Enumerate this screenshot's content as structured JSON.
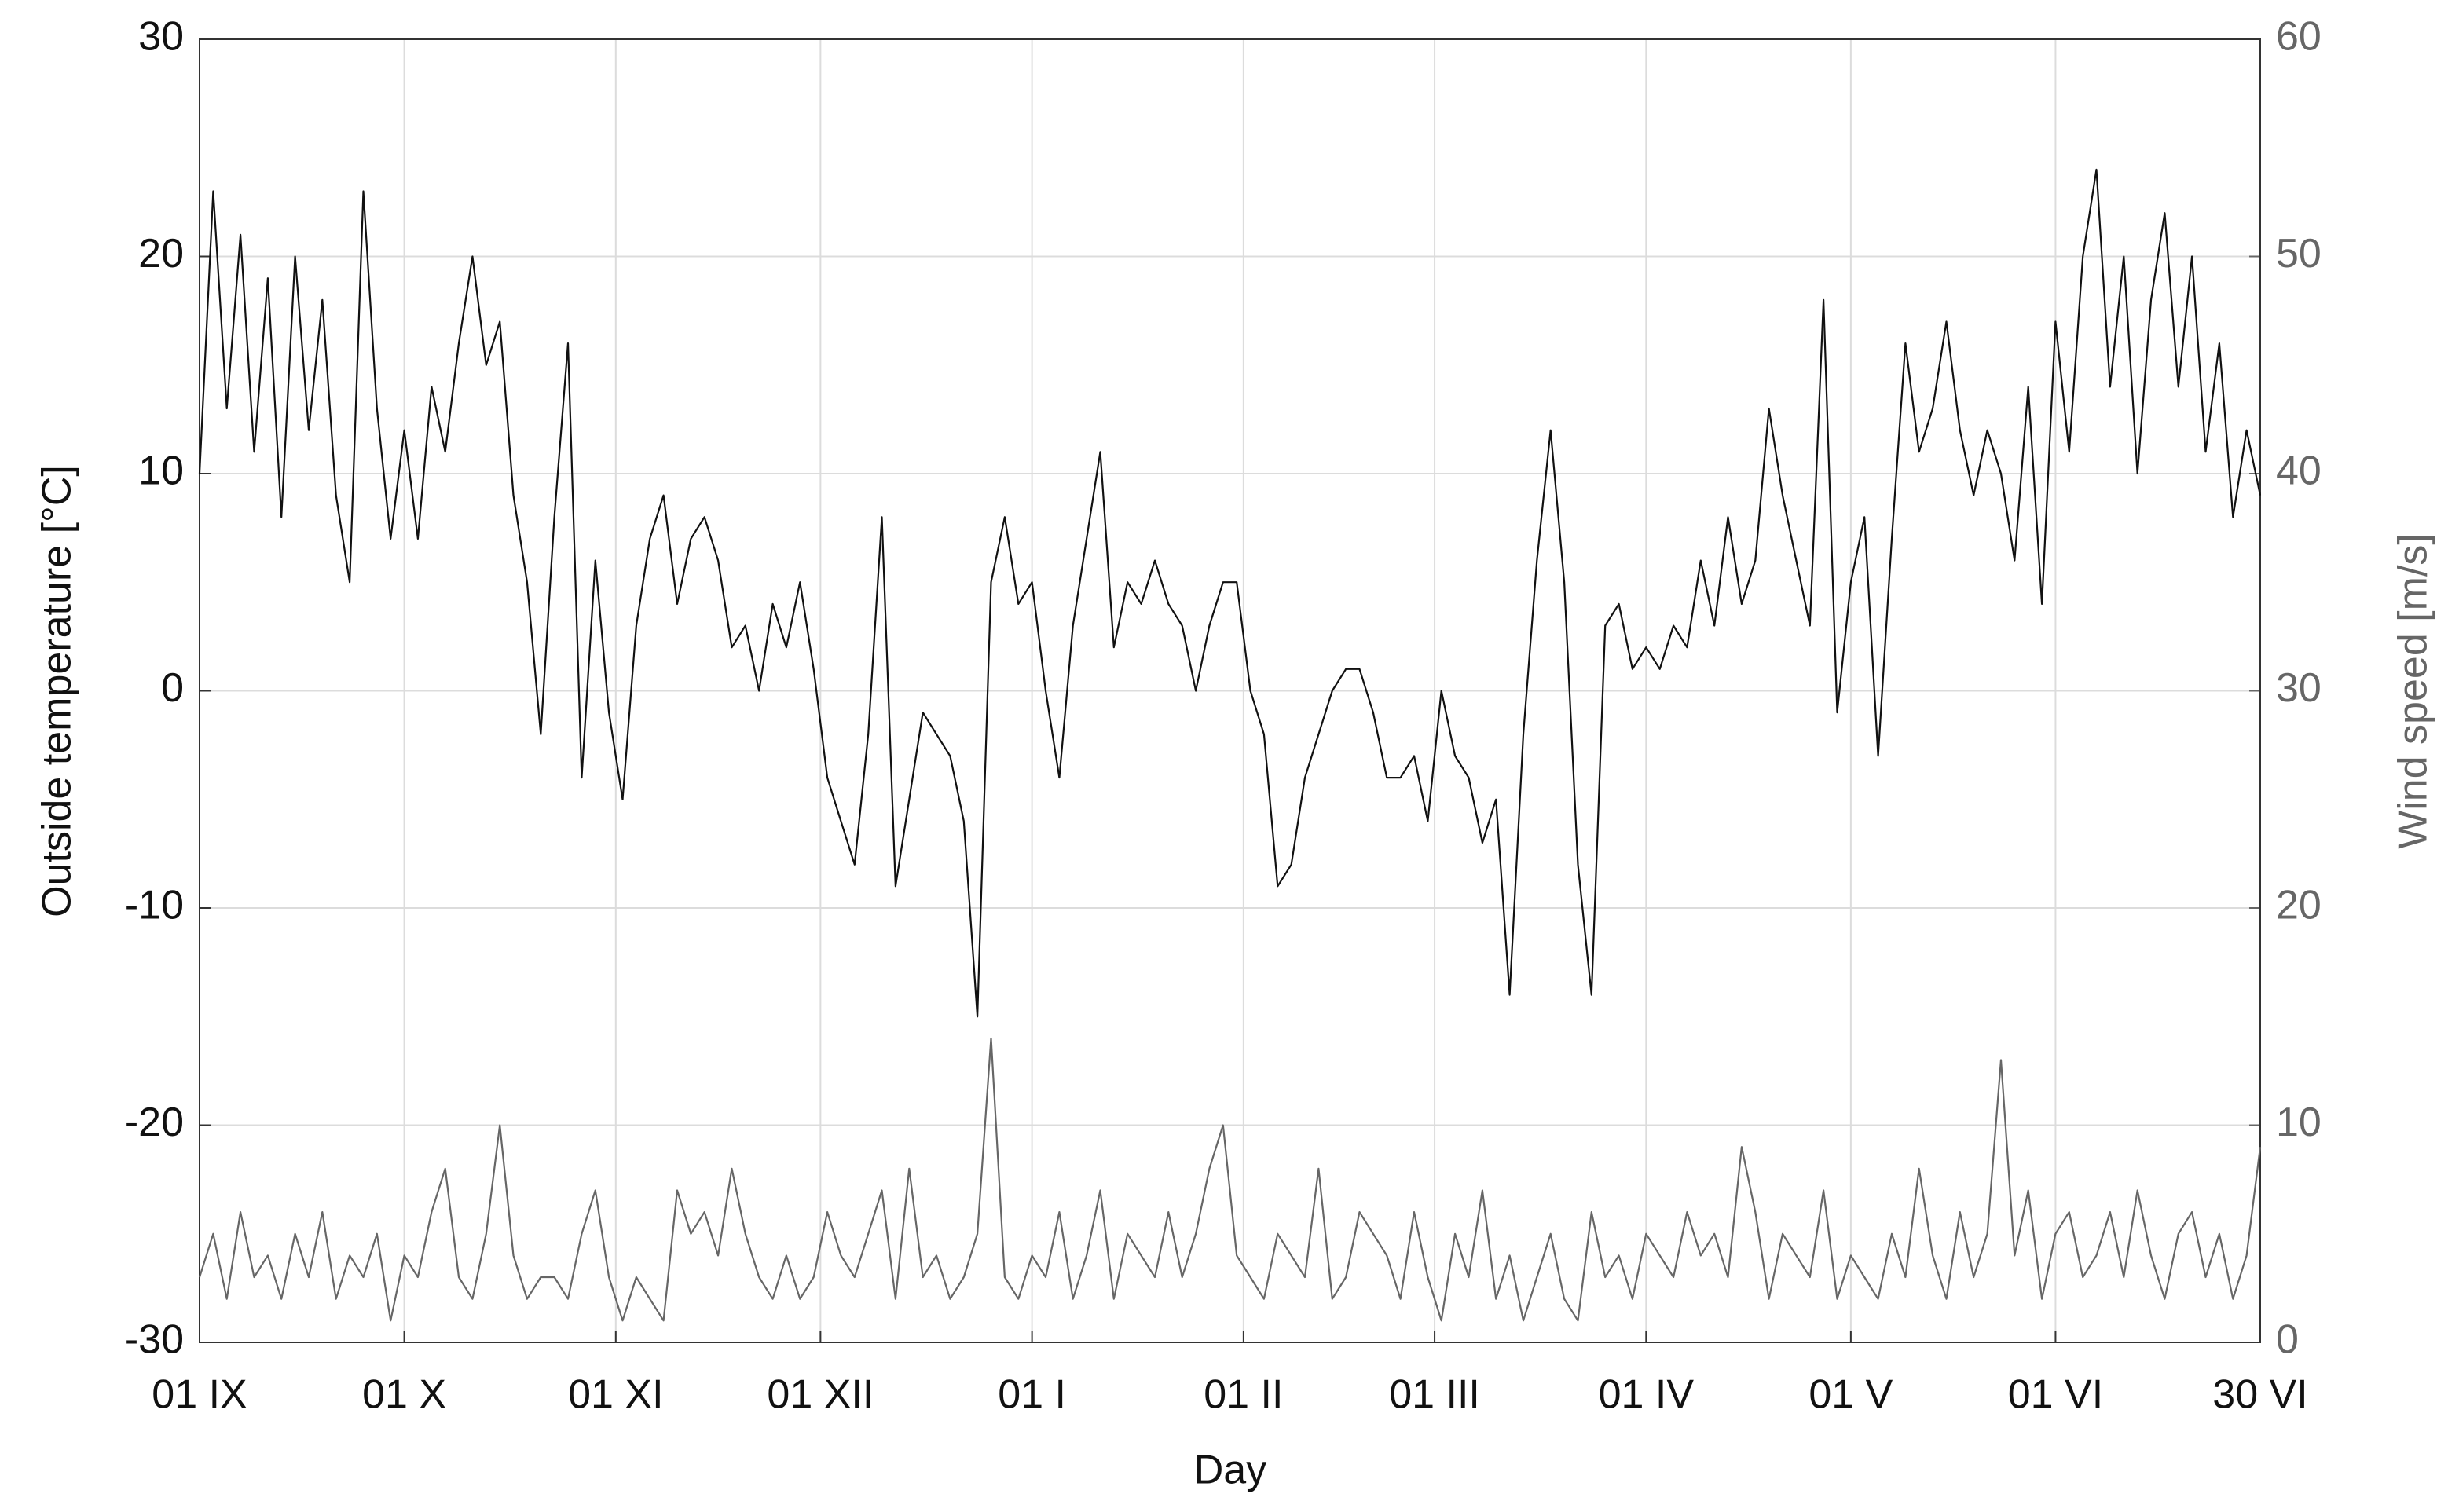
{
  "chart_data": {
    "type": "line",
    "xlabel": "Day",
    "ylabel": "Outside temperature [°C]",
    "y2label": "Wind speed [m/s]",
    "x": [
      0,
      2,
      4,
      6,
      8,
      10,
      12,
      14,
      16,
      18,
      20,
      22,
      24,
      26,
      28,
      30,
      32,
      34,
      36,
      38,
      40,
      42,
      44,
      46,
      48,
      50,
      52,
      54,
      56,
      58,
      60,
      62,
      64,
      66,
      68,
      70,
      72,
      74,
      76,
      78,
      80,
      82,
      84,
      86,
      88,
      90,
      92,
      94,
      96,
      98,
      100,
      102,
      104,
      106,
      108,
      110,
      112,
      114,
      116,
      118,
      120,
      122,
      124,
      126,
      128,
      130,
      132,
      134,
      136,
      138,
      140,
      142,
      144,
      146,
      148,
      150,
      152,
      154,
      156,
      158,
      160,
      162,
      164,
      166,
      168,
      170,
      172,
      174,
      176,
      178,
      180,
      182,
      184,
      186,
      188,
      190,
      192,
      194,
      196,
      198,
      200,
      202,
      204,
      206,
      208,
      210,
      212,
      214,
      216,
      218,
      220,
      222,
      224,
      226,
      228,
      230,
      232,
      234,
      236,
      238,
      240,
      242,
      244,
      246,
      248,
      250,
      252,
      254,
      256,
      258,
      260,
      262,
      264,
      266,
      268,
      270,
      272,
      274,
      276,
      278,
      280,
      282,
      284,
      286,
      288,
      290,
      292,
      294,
      296,
      298,
      300,
      302
    ],
    "series": [
      {
        "color": "#111111",
        "values": [
          10,
          23,
          13,
          21,
          11,
          19,
          8,
          20,
          12,
          18,
          9,
          5,
          23,
          13,
          7,
          12,
          7,
          14,
          11,
          16,
          20,
          15,
          17,
          9,
          5,
          -2,
          8,
          16,
          -4,
          6,
          -1,
          -5,
          3,
          7,
          9,
          4,
          7,
          8,
          6,
          2,
          3,
          0,
          4,
          2,
          5,
          1,
          -4,
          -6,
          -8,
          -2,
          8,
          -9,
          -5,
          -1,
          -2,
          -3,
          -6,
          -15,
          5,
          8,
          4,
          5,
          0,
          -4,
          3,
          7,
          11,
          2,
          5,
          4,
          6,
          4,
          3,
          0,
          3,
          5,
          5,
          0,
          -2,
          -9,
          -8,
          -4,
          -2,
          0,
          1,
          1,
          -1,
          -4,
          -4,
          -3,
          -6,
          0,
          -3,
          -4,
          -7,
          -5,
          -14,
          -2,
          6,
          12,
          5,
          -8,
          -14,
          3,
          4,
          1,
          2,
          1,
          3,
          2,
          6,
          3,
          8,
          4,
          6,
          13,
          9,
          6,
          3,
          18,
          -1,
          5,
          8,
          -3,
          7,
          16,
          11,
          13,
          17,
          12,
          9,
          12,
          10,
          6,
          14,
          4,
          17,
          11,
          20,
          24,
          14,
          20,
          10,
          18,
          22,
          14,
          20,
          11,
          16,
          8,
          12,
          9
        ]
      },
      {
        "color": "#666666",
        "axis": "y2",
        "values": [
          3,
          5,
          2,
          6,
          3,
          4,
          2,
          5,
          3,
          6,
          2,
          4,
          3,
          5,
          1,
          4,
          3,
          6,
          8,
          3,
          2,
          5,
          10,
          4,
          2,
          3,
          3,
          2,
          5,
          7,
          3,
          1,
          3,
          2,
          1,
          7,
          5,
          6,
          4,
          8,
          5,
          3,
          2,
          4,
          2,
          3,
          6,
          4,
          3,
          5,
          7,
          2,
          8,
          3,
          4,
          2,
          3,
          5,
          14,
          3,
          2,
          4,
          3,
          6,
          2,
          4,
          7,
          2,
          5,
          4,
          3,
          6,
          3,
          5,
          8,
          10,
          4,
          3,
          2,
          5,
          4,
          3,
          8,
          2,
          3,
          6,
          5,
          4,
          2,
          6,
          3,
          1,
          5,
          3,
          7,
          2,
          4,
          1,
          3,
          5,
          2,
          1,
          6,
          3,
          4,
          2,
          5,
          4,
          3,
          6,
          4,
          5,
          3,
          9,
          6,
          2,
          5,
          4,
          3,
          7,
          2,
          4,
          3,
          2,
          5,
          3,
          8,
          4,
          2,
          6,
          3,
          5,
          13,
          4,
          7,
          2,
          5,
          6,
          3,
          4,
          6,
          3,
          7,
          4,
          2,
          5,
          6,
          3,
          5,
          2,
          4,
          9
        ]
      }
    ],
    "xlim": [
      0,
      302
    ],
    "xticks": [
      {
        "value": 0,
        "label": "01 IX"
      },
      {
        "value": 30,
        "label": "01 X"
      },
      {
        "value": 61,
        "label": "01 XI"
      },
      {
        "value": 91,
        "label": "01 XII"
      },
      {
        "value": 122,
        "label": "01 I"
      },
      {
        "value": 153,
        "label": "01 II"
      },
      {
        "value": 181,
        "label": "01 III"
      },
      {
        "value": 212,
        "label": "01 IV"
      },
      {
        "value": 242,
        "label": "01 V"
      },
      {
        "value": 272,
        "label": "01 VI"
      },
      {
        "value": 302,
        "label": "30 VI"
      }
    ],
    "ylim": [
      -30,
      30
    ],
    "yticks": [
      -30,
      -20,
      -10,
      0,
      10,
      20,
      30
    ],
    "y2lim": [
      0,
      60
    ],
    "y2ticks": [
      0,
      10,
      20,
      30,
      40,
      50,
      60
    ],
    "grid": true
  }
}
